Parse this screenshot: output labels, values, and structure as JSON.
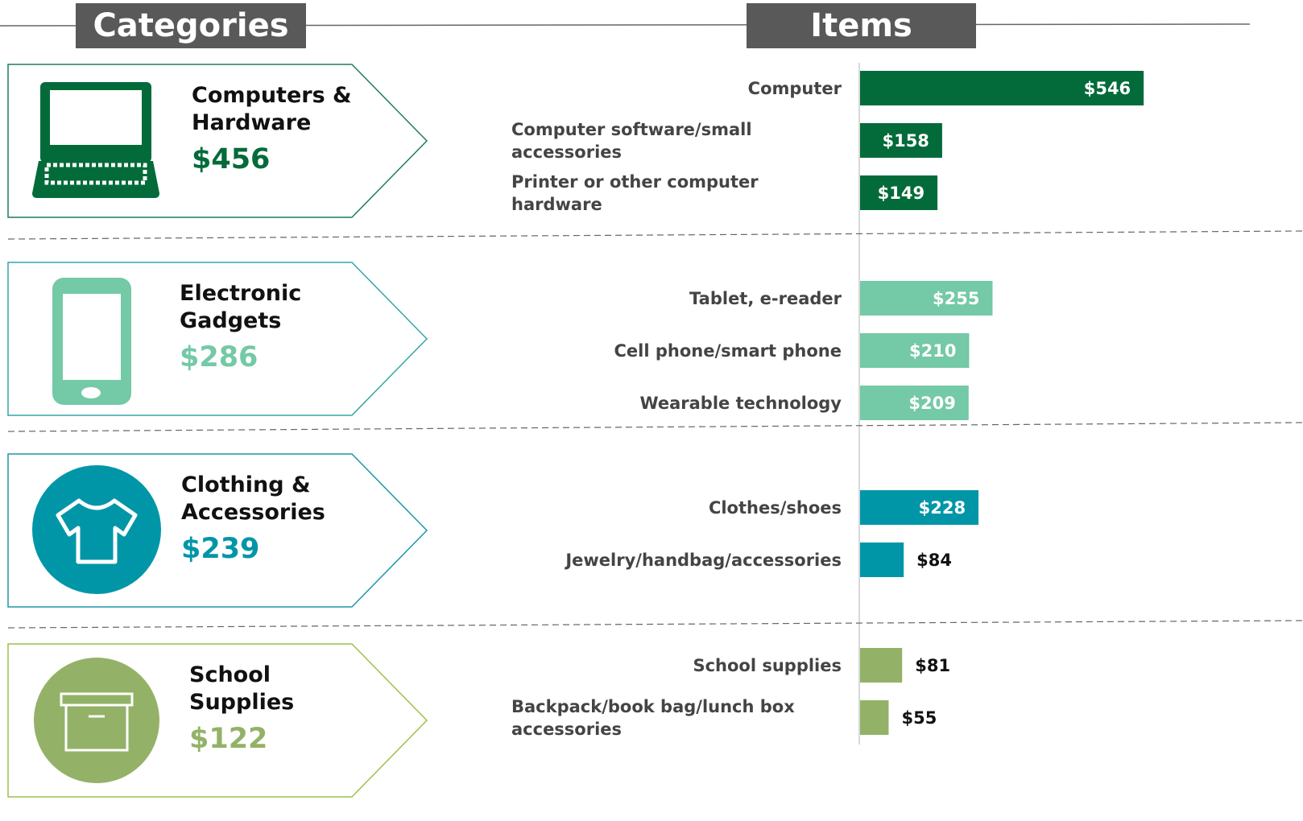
{
  "header": {
    "left": "Categories",
    "right": "Items"
  },
  "chart_data": {
    "type": "bar",
    "groups": [
      {
        "name": "Computers & Hardware",
        "total": "$456",
        "color": "#036b3a",
        "border": "#1f7d5c",
        "categories": [
          "Computer",
          "Computer software/small accessories",
          "Printer or other computer hardware"
        ],
        "values": [
          546,
          158,
          149
        ],
        "value_labels": [
          "$546",
          "$158",
          "$149"
        ]
      },
      {
        "name": "Electronic Gadgets",
        "total": "$286",
        "color": "#74c9a6",
        "border": "#33a6a6",
        "categories": [
          "Tablet, e-reader",
          "Cell phone/smart phone",
          "Wearable technology"
        ],
        "values": [
          255,
          210,
          209
        ],
        "value_labels": [
          "$255",
          "$210",
          "$209"
        ]
      },
      {
        "name": "Clothing & Accessories",
        "total": "$239",
        "color": "#0096a8",
        "border": "#1d96a8",
        "categories": [
          "Clothes/shoes",
          "Jewelry/handbag/accessories"
        ],
        "values": [
          228,
          84
        ],
        "value_labels": [
          "$228",
          "$84"
        ]
      },
      {
        "name": "School Supplies",
        "total": "$122",
        "color": "#93b267",
        "border": "#9cc04a",
        "categories": [
          "School supplies",
          "Backpack/book bag/lunch box accessories"
        ],
        "values": [
          81,
          55
        ],
        "value_labels": [
          "$81",
          "$55"
        ]
      }
    ]
  }
}
